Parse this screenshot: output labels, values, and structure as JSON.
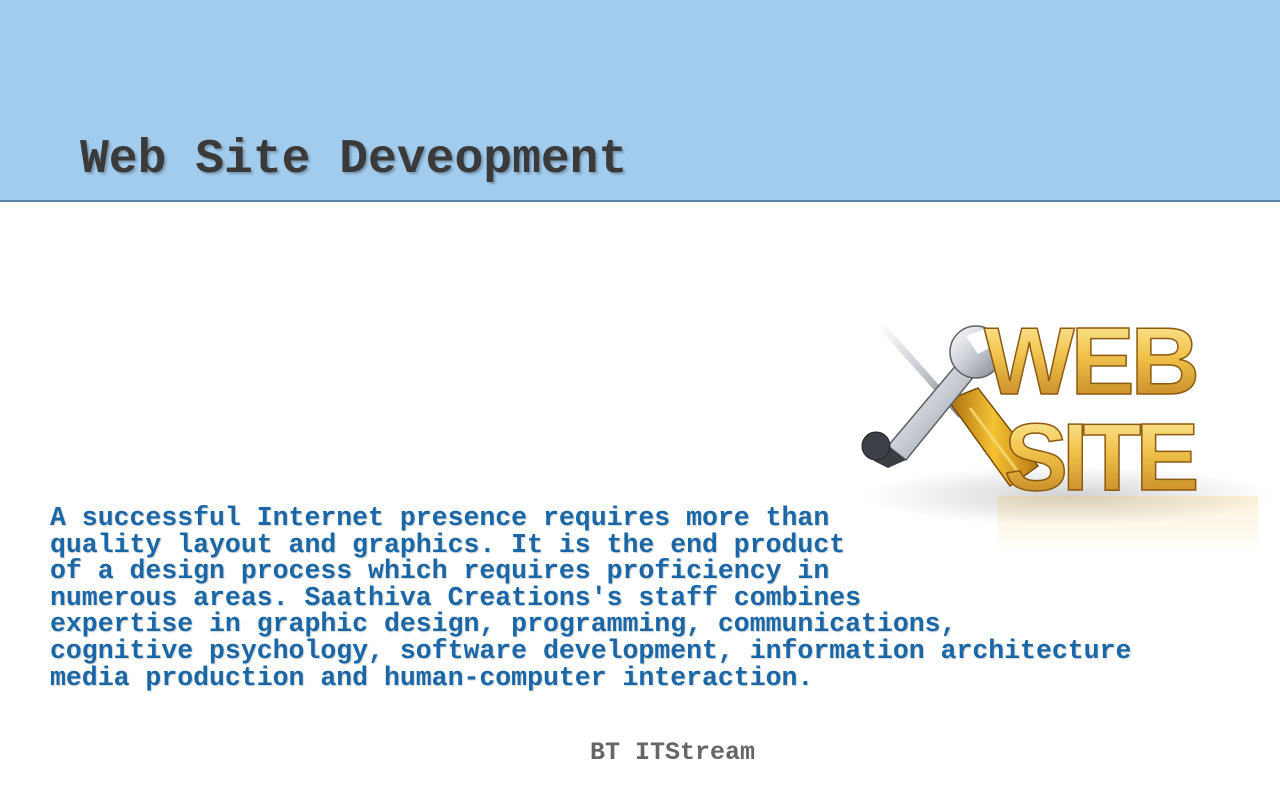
{
  "slide": {
    "title": "Web Site Deveopment",
    "body_lines": [
      "A successful Internet presence requires more than",
      "quality layout and graphics. It is the end product",
      "of a design process which requires proficiency in",
      "numerous areas. Saathiva Creations's staff combines",
      "expertise in graphic design, programming, communications,",
      "cognitive psychology, software development, information architecture",
      "media production and human-computer interaction."
    ],
    "footer": "BT ITStream"
  },
  "graphic": {
    "words": [
      "WEB",
      "SITE"
    ],
    "icons": [
      "wrench-icon",
      "screwdriver-icon"
    ],
    "colors": {
      "gold": "#e6b33a",
      "title_band": "#a2ccee",
      "body_text": "#1a67a8"
    }
  }
}
